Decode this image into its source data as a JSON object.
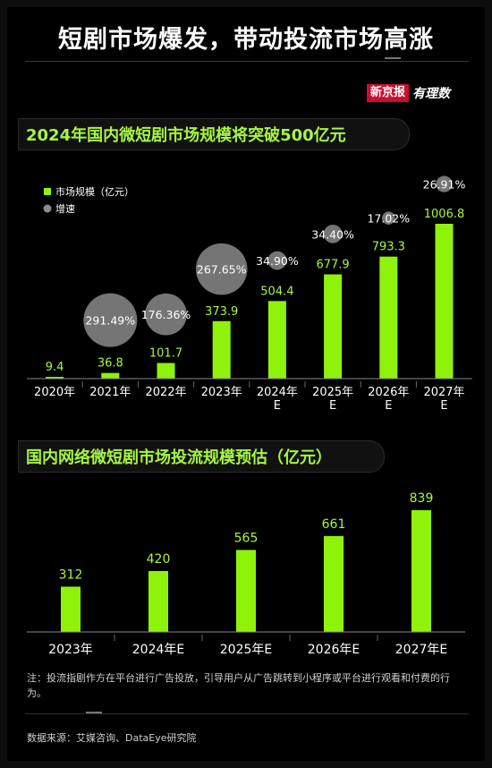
{
  "page": {
    "title": "短剧市场爆发，带动投流市场高涨",
    "brand_box": "新京报",
    "brand_script": "有理数",
    "note": "注：投流指剧作方在平台进行广告投放，引导用户从广告跳转到小程序或平台进行观看和付费的行为。",
    "source": "数据来源：艾媒咨询、DataEye研究院"
  },
  "colors": {
    "bar": "#8ff20a",
    "bubble": "#8a8a8a",
    "accent": "#a5f542",
    "background": "#000000"
  },
  "chart_data": [
    {
      "type": "bar",
      "title": "2024年国内微短剧市场规模将突破500亿元",
      "legend": {
        "position": "top-left",
        "entries": [
          "市场规模（亿元）",
          "增速"
        ]
      },
      "categories": [
        [
          "2020年"
        ],
        [
          "2021年"
        ],
        [
          "2022年"
        ],
        [
          "2023年"
        ],
        [
          "2024年",
          "E"
        ],
        [
          "2025年",
          "E"
        ],
        [
          "2026年",
          "E"
        ],
        [
          "2027年",
          "E"
        ]
      ],
      "series": [
        {
          "name": "市场规模（亿元）",
          "values": [
            9.4,
            36.8,
            101.7,
            373.9,
            504.4,
            677.9,
            793.3,
            1006.8
          ],
          "labels": [
            "9.4",
            "36.8",
            "101.7",
            "373.9",
            "504.4",
            "677.9",
            "793.3",
            "1006.8"
          ]
        },
        {
          "name": "增速",
          "values": [
            null,
            291.49,
            176.36,
            267.65,
            34.9,
            34.4,
            17.02,
            26.91
          ],
          "labels": [
            "",
            "291.49%",
            "176.36%",
            "267.65%",
            "34.90%",
            "34.40%",
            "17.02%",
            "26.91%"
          ]
        }
      ],
      "ylim": [
        0,
        1006.8
      ],
      "grid": false
    },
    {
      "type": "bar",
      "title": "国内网络微短剧市场投流规模预估（亿元）",
      "categories": [
        "2023年",
        "2024年E",
        "2025年E",
        "2026年E",
        "2027年E"
      ],
      "values": [
        312,
        420,
        565,
        661,
        839
      ],
      "labels": [
        "312",
        "420",
        "565",
        "661",
        "839"
      ],
      "ylim": [
        0,
        839
      ],
      "grid": false
    }
  ]
}
